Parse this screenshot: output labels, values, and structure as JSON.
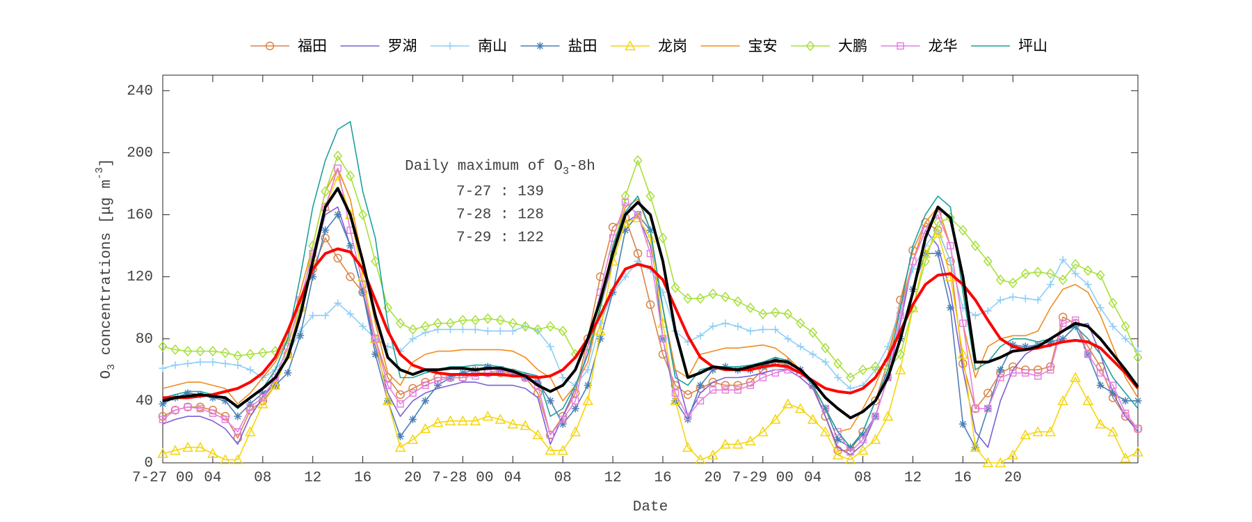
{
  "chart_data": {
    "type": "line",
    "x_label": "Date",
    "y_label": [
      {
        "text": "O"
      },
      {
        "text": "3",
        "shift": "sub"
      },
      {
        "text": " concentrations ["
      },
      {
        "text": "μ"
      },
      {
        "text": "g m"
      },
      {
        "text": "-3",
        "shift": "super"
      },
      {
        "text": "]"
      }
    ],
    "annotation": {
      "title": [
        {
          "text": "Daily maximum of O"
        },
        {
          "text": "3",
          "shift": "sub"
        },
        {
          "text": "-8h"
        }
      ],
      "lines": [
        "7-27 : 139",
        "7-28 : 128",
        "7-29 : 122"
      ]
    },
    "x": [
      0,
      1,
      2,
      3,
      4,
      5,
      6,
      7,
      8,
      9,
      10,
      11,
      12,
      13,
      14,
      15,
      16,
      17,
      18,
      19,
      20,
      21,
      22,
      23,
      24,
      25,
      26,
      27,
      28,
      29,
      30,
      31,
      32,
      33,
      34,
      35,
      36,
      37,
      38,
      39,
      40,
      41,
      42,
      43,
      44,
      45,
      46,
      47,
      48,
      49,
      50,
      51,
      52,
      53,
      54,
      55,
      56,
      57,
      58,
      59,
      60,
      61,
      62,
      63,
      64,
      65,
      66,
      67,
      68,
      69,
      70,
      71,
      72,
      73,
      74,
      75,
      76,
      77,
      78
    ],
    "xlim": [
      0,
      78
    ],
    "xticks": [
      {
        "value": 0,
        "label": "7-27 00"
      },
      {
        "value": 4,
        "label": "04"
      },
      {
        "value": 8,
        "label": "08"
      },
      {
        "value": 12,
        "label": "12"
      },
      {
        "value": 16,
        "label": "16"
      },
      {
        "value": 20,
        "label": "20"
      },
      {
        "value": 24,
        "label": "7-28 00"
      },
      {
        "value": 28,
        "label": "04"
      },
      {
        "value": 32,
        "label": "08"
      },
      {
        "value": 36,
        "label": "12"
      },
      {
        "value": 40,
        "label": "16"
      },
      {
        "value": 44,
        "label": "20"
      },
      {
        "value": 48,
        "label": "7-29 00"
      },
      {
        "value": 52,
        "label": "04"
      },
      {
        "value": 56,
        "label": "08"
      },
      {
        "value": 60,
        "label": "12"
      },
      {
        "value": 64,
        "label": "16"
      },
      {
        "value": 68,
        "label": "20"
      }
    ],
    "ylim": [
      0,
      250
    ],
    "yticks": [
      0,
      40,
      80,
      120,
      160,
      200,
      240
    ],
    "grid": false,
    "legend": "top",
    "series": [
      {
        "name": "福田",
        "color": "#d9844a",
        "marker": "o",
        "width": 1.6,
        "values": [
          30,
          34,
          36,
          36,
          34,
          30,
          16,
          34,
          40,
          50,
          70,
          100,
          125,
          145,
          132,
          120,
          110,
          80,
          55,
          44,
          48,
          52,
          55,
          55,
          55,
          58,
          58,
          58,
          58,
          55,
          45,
          18,
          30,
          45,
          80,
          120,
          152,
          158,
          135,
          102,
          70,
          50,
          44,
          48,
          52,
          50,
          50,
          52,
          60,
          65,
          63,
          58,
          50,
          30,
          8,
          8,
          20,
          40,
          65,
          105,
          137,
          155,
          150,
          130,
          64,
          35,
          45,
          58,
          62,
          60,
          60,
          62,
          94,
          90,
          75,
          62,
          42,
          30,
          22
        ]
      },
      {
        "name": "罗湖",
        "color": "#7b5fd6",
        "marker": "none",
        "width": 1.6,
        "values": [
          25,
          28,
          30,
          30,
          27,
          22,
          12,
          30,
          42,
          52,
          70,
          100,
          130,
          160,
          165,
          140,
          110,
          75,
          45,
          30,
          40,
          45,
          48,
          50,
          52,
          52,
          50,
          50,
          50,
          48,
          42,
          12,
          30,
          48,
          70,
          100,
          130,
          155,
          160,
          140,
          100,
          60,
          30,
          45,
          52,
          55,
          55,
          56,
          58,
          60,
          60,
          55,
          48,
          30,
          10,
          5,
          12,
          30,
          55,
          90,
          130,
          150,
          140,
          110,
          60,
          20,
          10,
          40,
          60,
          70,
          75,
          75,
          80,
          88,
          90,
          70,
          45,
          30,
          20
        ]
      },
      {
        "name": "南山",
        "color": "#8ecdf5",
        "marker": "+",
        "width": 1.6,
        "values": [
          61,
          63,
          64,
          65,
          65,
          64,
          63,
          60,
          55,
          60,
          70,
          85,
          95,
          95,
          103,
          96,
          88,
          80,
          75,
          72,
          80,
          84,
          86,
          86,
          86,
          86,
          85,
          85,
          85,
          88,
          85,
          75,
          55,
          50,
          60,
          90,
          110,
          120,
          130,
          125,
          110,
          85,
          78,
          82,
          88,
          90,
          88,
          85,
          86,
          86,
          80,
          75,
          70,
          65,
          55,
          48,
          50,
          60,
          75,
          100,
          125,
          140,
          150,
          130,
          100,
          95,
          98,
          105,
          107,
          106,
          105,
          115,
          131,
          122,
          115,
          100,
          88,
          80,
          72
        ]
      },
      {
        "name": "盐田",
        "color": "#4a7fb5",
        "marker": "*",
        "width": 1.6,
        "values": [
          38,
          42,
          45,
          44,
          42,
          40,
          30,
          38,
          45,
          50,
          58,
          82,
          120,
          150,
          160,
          140,
          110,
          70,
          40,
          17,
          28,
          40,
          50,
          55,
          58,
          60,
          62,
          60,
          58,
          55,
          52,
          40,
          25,
          35,
          50,
          80,
          110,
          150,
          160,
          150,
          80,
          40,
          28,
          50,
          60,
          62,
          60,
          60,
          62,
          66,
          65,
          60,
          50,
          35,
          15,
          10,
          18,
          30,
          55,
          80,
          112,
          135,
          135,
          100,
          25,
          10,
          35,
          60,
          76,
          75,
          76,
          78,
          80,
          88,
          70,
          50,
          45,
          40,
          40
        ]
      },
      {
        "name": "龙岗",
        "color": "#f5d50a",
        "marker": "^",
        "width": 1.6,
        "values": [
          6,
          8,
          10,
          10,
          6,
          2,
          2,
          20,
          38,
          50,
          70,
          100,
          130,
          165,
          185,
          160,
          120,
          80,
          40,
          10,
          15,
          22,
          26,
          27,
          27,
          27,
          30,
          28,
          25,
          24,
          18,
          8,
          8,
          20,
          40,
          85,
          130,
          155,
          158,
          145,
          90,
          40,
          10,
          2,
          5,
          12,
          12,
          14,
          20,
          28,
          38,
          35,
          28,
          20,
          5,
          2,
          8,
          15,
          30,
          60,
          100,
          135,
          148,
          120,
          70,
          10,
          0,
          0,
          5,
          18,
          20,
          20,
          40,
          55,
          40,
          25,
          20,
          3,
          7
        ]
      },
      {
        "name": "宝安",
        "color": "#f08c1a",
        "marker": "none",
        "width": 1.6,
        "values": [
          48,
          50,
          52,
          52,
          50,
          48,
          38,
          45,
          55,
          65,
          80,
          110,
          140,
          175,
          190,
          170,
          130,
          90,
          58,
          50,
          65,
          70,
          72,
          72,
          73,
          73,
          73,
          73,
          72,
          68,
          60,
          55,
          40,
          50,
          65,
          100,
          140,
          165,
          170,
          150,
          100,
          60,
          55,
          70,
          72,
          74,
          74,
          75,
          76,
          74,
          68,
          60,
          50,
          35,
          20,
          22,
          35,
          50,
          70,
          100,
          130,
          155,
          165,
          140,
          90,
          55,
          75,
          80,
          82,
          82,
          85,
          100,
          112,
          115,
          110,
          95,
          75,
          55,
          42
        ]
      },
      {
        "name": "大鹏",
        "color": "#a6e03a",
        "marker": "d",
        "width": 1.6,
        "values": [
          75,
          73,
          72,
          72,
          72,
          71,
          69,
          70,
          71,
          72,
          78,
          100,
          140,
          175,
          198,
          185,
          160,
          130,
          100,
          90,
          86,
          88,
          90,
          90,
          92,
          92,
          93,
          92,
          90,
          88,
          86,
          88,
          85,
          70,
          75,
          100,
          135,
          172,
          195,
          172,
          145,
          113,
          106,
          106,
          109,
          107,
          104,
          100,
          96,
          97,
          96,
          90,
          84,
          74,
          64,
          55,
          60,
          62,
          60,
          70,
          100,
          130,
          155,
          158,
          150,
          140,
          130,
          118,
          116,
          122,
          123,
          122,
          118,
          128,
          124,
          121,
          103,
          88,
          68
        ]
      },
      {
        "name": "龙华",
        "color": "#e57fe0",
        "marker": "s",
        "width": 1.6,
        "values": [
          28,
          34,
          36,
          35,
          32,
          28,
          20,
          36,
          42,
          55,
          75,
          105,
          135,
          165,
          190,
          150,
          115,
          80,
          50,
          38,
          45,
          50,
          53,
          55,
          55,
          56,
          58,
          60,
          58,
          55,
          50,
          18,
          28,
          40,
          75,
          110,
          145,
          168,
          160,
          135,
          80,
          45,
          30,
          40,
          47,
          47,
          47,
          50,
          55,
          58,
          60,
          58,
          50,
          35,
          20,
          7,
          15,
          30,
          55,
          95,
          130,
          150,
          160,
          140,
          90,
          35,
          35,
          55,
          58,
          58,
          56,
          60,
          90,
          92,
          70,
          58,
          50,
          32,
          22
        ]
      },
      {
        "name": "坪山",
        "color": "#1aa19a",
        "marker": "none",
        "width": 1.6,
        "values": [
          42,
          44,
          46,
          46,
          44,
          42,
          35,
          42,
          48,
          60,
          80,
          120,
          165,
          195,
          215,
          220,
          175,
          145,
          90,
          55,
          55,
          58,
          60,
          62,
          62,
          63,
          63,
          62,
          60,
          58,
          56,
          30,
          35,
          50,
          70,
          100,
          140,
          162,
          172,
          150,
          100,
          55,
          50,
          60,
          62,
          62,
          62,
          63,
          65,
          68,
          66,
          60,
          50,
          35,
          20,
          10,
          20,
          40,
          60,
          100,
          140,
          160,
          172,
          165,
          110,
          60,
          65,
          75,
          80,
          80,
          78,
          80,
          85,
          88,
          80,
          70,
          55,
          45,
          35
        ]
      },
      {
        "color": "#ff0000",
        "marker": "none",
        "width": 4,
        "values": [
          42,
          42,
          42,
          43,
          44,
          46,
          48,
          52,
          58,
          68,
          85,
          105,
          125,
          135,
          138,
          136,
          125,
          105,
          85,
          70,
          63,
          60,
          58,
          57,
          57,
          57,
          57,
          57,
          56,
          56,
          55,
          56,
          60,
          68,
          80,
          95,
          112,
          125,
          128,
          126,
          118,
          100,
          82,
          68,
          62,
          60,
          60,
          60,
          62,
          63,
          62,
          58,
          53,
          48,
          46,
          45,
          48,
          55,
          68,
          85,
          102,
          115,
          121,
          122,
          115,
          105,
          92,
          80,
          75,
          73,
          74,
          76,
          78,
          79,
          78,
          74,
          66,
          58,
          48
        ]
      },
      {
        "color": "#000000",
        "marker": "none",
        "width": 4,
        "values": [
          40,
          42,
          43,
          44,
          43,
          42,
          36,
          42,
          48,
          55,
          68,
          95,
          130,
          165,
          177,
          160,
          130,
          95,
          68,
          60,
          57,
          60,
          60,
          61,
          61,
          60,
          61,
          61,
          59,
          56,
          50,
          46,
          50,
          60,
          80,
          105,
          135,
          160,
          168,
          160,
          130,
          85,
          55,
          58,
          62,
          61,
          60,
          62,
          64,
          66,
          65,
          60,
          52,
          42,
          35,
          29,
          33,
          40,
          55,
          80,
          110,
          145,
          165,
          158,
          120,
          65,
          65,
          68,
          72,
          73,
          75,
          80,
          85,
          90,
          88,
          80,
          70,
          60,
          49
        ]
      }
    ]
  }
}
